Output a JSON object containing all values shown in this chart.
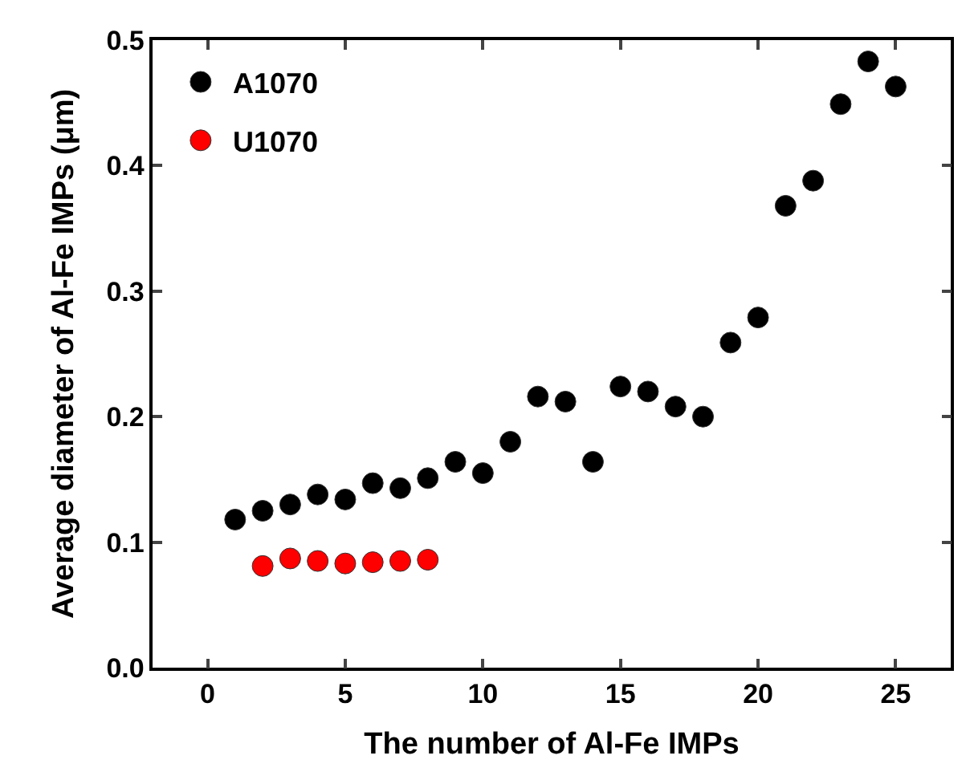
{
  "chart_data": {
    "type": "scatter",
    "xlabel": "The number of Al-Fe IMPs",
    "ylabel": "Average diameter of Al-Fe IMPs (μm)",
    "xlim": [
      -2,
      27
    ],
    "xticks": [
      0,
      5,
      10,
      15,
      20,
      25
    ],
    "ylim": [
      0,
      0.5
    ],
    "yticks": [
      {
        "value": 0,
        "label": "0.0"
      },
      {
        "value": 0.1,
        "label": "0.1"
      },
      {
        "value": 0.2,
        "label": "0.2"
      },
      {
        "value": 0.3,
        "label": "0.3"
      },
      {
        "value": 0.4,
        "label": "0.4"
      },
      {
        "value": 0.5,
        "label": "0.5"
      }
    ],
    "marker": "circle",
    "legend": "top left",
    "series": [
      {
        "name": "A1070",
        "color": "#000000",
        "x": [
          1,
          2,
          3,
          4,
          5,
          6,
          7,
          8,
          9,
          10,
          11,
          12,
          13,
          14,
          15,
          16,
          17,
          18,
          19,
          20,
          21,
          22,
          23,
          24,
          25
        ],
        "values": [
          0.118,
          0.125,
          0.13,
          0.138,
          0.134,
          0.147,
          0.143,
          0.151,
          0.164,
          0.155,
          0.18,
          0.216,
          0.212,
          0.164,
          0.224,
          0.22,
          0.208,
          0.2,
          0.259,
          0.279,
          0.368,
          0.388,
          0.449,
          0.483,
          0.463
        ]
      },
      {
        "name": "U1070",
        "color": "#ff0000",
        "x": [
          2,
          3,
          4,
          5,
          6,
          7,
          8
        ],
        "values": [
          0.081,
          0.087,
          0.085,
          0.083,
          0.084,
          0.085,
          0.086
        ]
      }
    ]
  }
}
